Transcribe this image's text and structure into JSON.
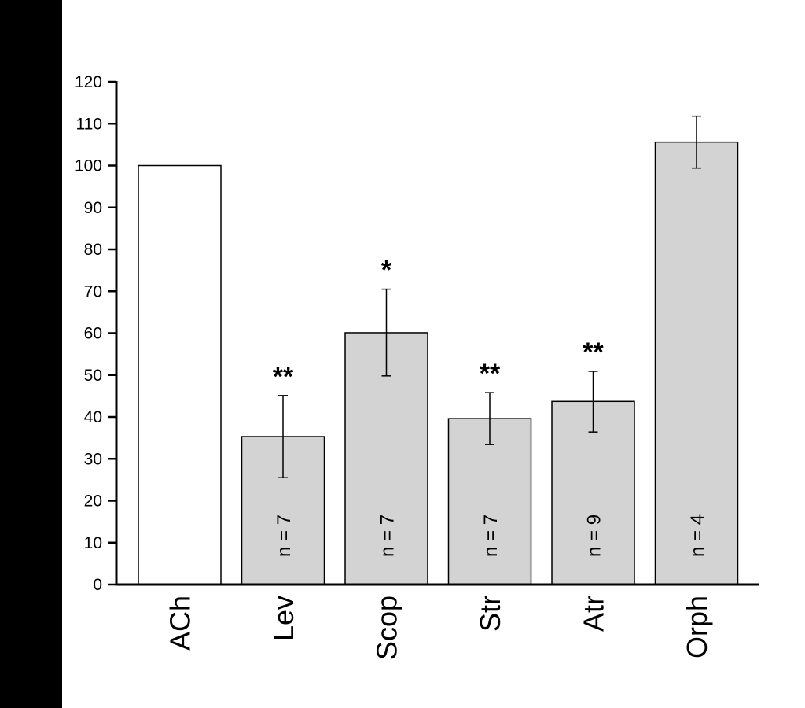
{
  "chart_data": {
    "type": "bar",
    "title": "",
    "xlabel": "",
    "ylabel": "",
    "ylim": [
      0,
      120
    ],
    "yticks": [
      0,
      10,
      20,
      30,
      40,
      50,
      60,
      70,
      80,
      90,
      100,
      110,
      120
    ],
    "categories": [
      "ACh",
      "Lev",
      "Scop",
      "Str",
      "Atr",
      "Orph"
    ],
    "values": [
      100,
      35.3,
      60.1,
      39.6,
      43.7,
      105.6
    ],
    "error_upper": [
      null,
      45.1,
      70.5,
      45.8,
      50.9,
      111.8
    ],
    "error_lower": [
      null,
      25.5,
      49.8,
      33.4,
      36.4,
      99.4
    ],
    "n_labels": [
      "",
      "n = 7",
      "n = 7",
      "n = 7",
      "n = 9",
      "n = 4"
    ],
    "significance": [
      "",
      "**",
      "*",
      "**",
      "**",
      ""
    ],
    "colors": {
      "control_fill": "#ffffff",
      "treatment_fill": "#d3d3d3",
      "stroke": "#000000",
      "left_band": "#000000"
    }
  }
}
